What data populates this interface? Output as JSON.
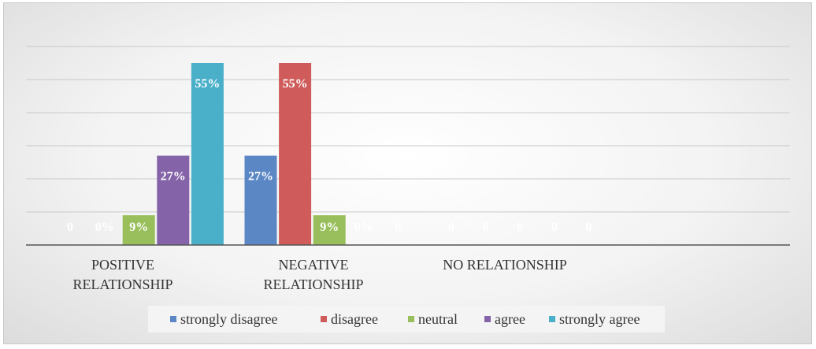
{
  "chart_data": {
    "type": "bar",
    "title": "",
    "xlabel": "",
    "ylabel": "",
    "ylim": [
      0,
      0.6
    ],
    "grid": true,
    "legend_position": "bottom",
    "categories": [
      "POSITIVE RELATIONSHIP",
      "NEGATIVE RELATIONSHIP",
      "NO RELATIONSHIP"
    ],
    "category_lines": [
      [
        "POSITIVE",
        "RELATIONSHIP"
      ],
      [
        "NEGATIVE",
        "RELATIONSHIP"
      ],
      [
        "NO RELATIONSHIP"
      ]
    ],
    "series": [
      {
        "name": "strongly disagree",
        "color": "#5b87c5",
        "values": [
          0,
          0.27,
          0
        ],
        "labels": [
          "0",
          "27%",
          "0"
        ]
      },
      {
        "name": "disagree",
        "color": "#cf5b5a",
        "values": [
          0,
          0.55,
          0
        ],
        "labels": [
          "0%",
          "55%",
          "0"
        ]
      },
      {
        "name": "neutral",
        "color": "#98bf5b",
        "values": [
          0.09,
          0.09,
          0
        ],
        "labels": [
          "9%",
          "9%",
          "0"
        ]
      },
      {
        "name": "agree",
        "color": "#8563a8",
        "values": [
          0.27,
          0,
          0
        ],
        "labels": [
          "27%",
          "0%",
          "0"
        ]
      },
      {
        "name": "strongly agree",
        "color": "#4aafc9",
        "values": [
          0.55,
          0,
          0
        ],
        "labels": [
          "55%",
          "0",
          "0"
        ]
      }
    ]
  }
}
